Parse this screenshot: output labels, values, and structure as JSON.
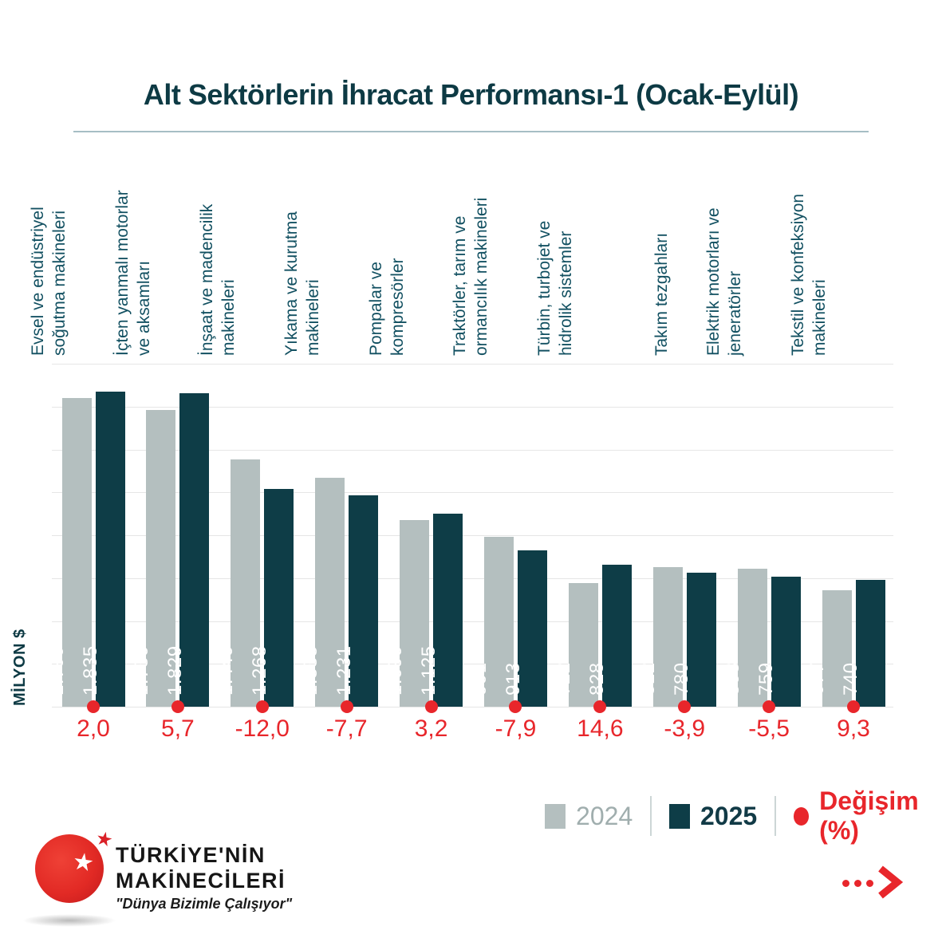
{
  "title": "Alt Sektörlerin İhracat Performansı-1 (Ocak-Eylül)",
  "y_axis_label": "MİLYON $",
  "chart_data": {
    "type": "bar",
    "title": "Alt Sektörlerin İhracat Performansı-1 (Ocak-Eylül)",
    "ylabel": "MİLYON $",
    "ylim": [
      0,
      2000
    ],
    "grid_step": 250,
    "grid": true,
    "legend_position": "bottom-right",
    "categories": [
      "Evsel ve endüstriyel soğutma makineleri",
      "İçten yanmalı motorlar ve aksamları",
      "İnşaat ve madencilik makineleri",
      "Yıkama ve kurutma makineleri",
      "Pompalar ve kompresörler",
      "Traktörler, tarım ve ormancılık makineleri",
      "Türbin, turbojet ve hidrolik sistemler",
      "Takım tezgahları",
      "Elektrik motorları ve jeneratörler",
      "Tekstil ve konfeksiyon makineleri"
    ],
    "category_lines": [
      [
        "Evsel ve endüstriyel",
        "soğutma makineleri"
      ],
      [
        "İçten yanmalı motorlar",
        "ve aksamları"
      ],
      [
        "İnşaat ve madencilik",
        "makineleri"
      ],
      [
        "Yıkama ve kurutma",
        "makineleri"
      ],
      [
        "Pompalar ve",
        "kompresörler"
      ],
      [
        "Traktörler, tarım ve",
        "ormancılık makineleri"
      ],
      [
        "Türbin, turbojet ve",
        "hidrolik sistemler"
      ],
      [
        "Takım tezgahları"
      ],
      [
        "Elektrik motorları ve",
        "jeneratörler"
      ],
      [
        "Tekstil ve konfeksiyon",
        "makineleri"
      ]
    ],
    "series": [
      {
        "name": "2024",
        "color": "#b4bfbf",
        "values": [
          1799,
          1730,
          1440,
          1335,
          1090,
          991,
          722,
          812,
          803,
          677
        ],
        "labels": [
          "1.799",
          "1.730",
          "1.440",
          "1.335",
          "1.090",
          "991",
          "722",
          "812",
          "803",
          "677"
        ]
      },
      {
        "name": "2025",
        "color": "#0e3d47",
        "values": [
          1835,
          1829,
          1268,
          1231,
          1125,
          913,
          828,
          780,
          759,
          740
        ],
        "labels": [
          "1.835",
          "1.829",
          "1.268",
          "1.231",
          "1.125",
          "913",
          "828",
          "780",
          "759",
          "740"
        ]
      }
    ],
    "change_pct": [
      "2,0",
      "5,7",
      "-12,0",
      "-7,7",
      "3,2",
      "-7,9",
      "14,6",
      "-3,9",
      "-5,5",
      "9,3"
    ]
  },
  "legend": {
    "items": [
      {
        "label": "2024",
        "color": "#b4bfbf",
        "marker": "square"
      },
      {
        "label": "2025",
        "color": "#0e3d47",
        "marker": "square"
      },
      {
        "label": "Değişim (%)",
        "color": "#e8262b",
        "marker": "circle"
      }
    ]
  },
  "footer": {
    "brand_line1": "TÜRKİYE'NİN",
    "brand_line2": "MAKİNECİLERİ",
    "slogan": "\"Dünya Bizimle Çalışıyor\"",
    "star_icon": "★",
    "next_icon": "chevron-right"
  },
  "colors": {
    "bar_2024": "#b4bfbf",
    "bar_2025": "#0e3d47",
    "accent_red": "#e8262b",
    "teal_text": "#125061",
    "title_text": "#0d3a44",
    "grid": "#e6e6e6",
    "title_rule": "#a6bec4"
  }
}
